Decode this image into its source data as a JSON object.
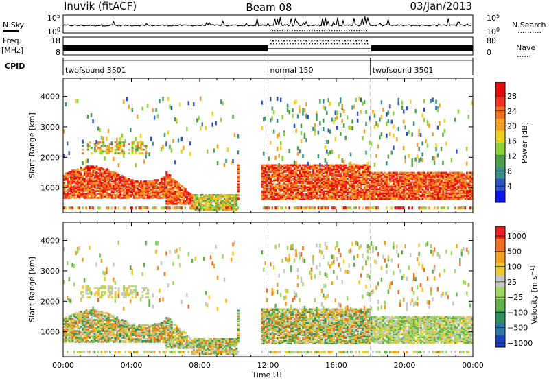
{
  "header": {
    "station": "Inuvik (fitACF)",
    "beam": "Beam 08",
    "date": "03/Jan/2013"
  },
  "top_panels": {
    "nsky_label": "N.Sky",
    "nsky_ticks": [
      "10^5",
      "10^0"
    ],
    "nsearch_label": "N.Search",
    "nsearch_ticks": [
      "10^5",
      "10^0"
    ],
    "freq_label": "Freq.",
    "freq_unit": "[MHz]",
    "freq_ticks": [
      "18",
      "8"
    ],
    "nave_label": "Nave",
    "nave_ticks": [
      "80",
      "0"
    ],
    "cpid_label": "CPID",
    "cpid_segments": [
      {
        "label": "twofsound 3501",
        "start_h": 0,
        "end_h": 12
      },
      {
        "label": "normal 150",
        "start_h": 12,
        "end_h": 18
      },
      {
        "label": "twofsound 3501",
        "start_h": 18,
        "end_h": 24
      }
    ]
  },
  "chart_data": [
    {
      "type": "heatmap",
      "title": "",
      "xlabel": "Time UT",
      "ylabel": "Slant Range [km]",
      "xlim_hours": [
        0,
        24
      ],
      "x_ticks": [
        "00:00",
        "04:00",
        "08:00",
        "12:00",
        "16:00",
        "20:00",
        "00:00"
      ],
      "ylim_km": [
        180,
        4600
      ],
      "y_ticks": [
        1000,
        2000,
        3000,
        4000
      ],
      "colorbar": {
        "label": "Power [dB]",
        "ticks": [
          "4",
          "8",
          "12",
          "16",
          "20",
          "24",
          "28"
        ],
        "colors": [
          "#0a14f0",
          "#2b55c4",
          "#3a8f8a",
          "#4da04a",
          "#8ed23a",
          "#f0d020",
          "#f5a020",
          "#f07020",
          "#f03020",
          "#e80a0a"
        ]
      },
      "features": [
        {
          "name": "main band",
          "start_h": 0,
          "end_h": 24,
          "range_km": [
            600,
            1550
          ],
          "value": "22–30 dB"
        },
        {
          "name": "upper band",
          "start_h": 1,
          "end_h": 5,
          "range_km": [
            2100,
            2500
          ],
          "value": "12–20 dB"
        },
        {
          "name": "data gap",
          "start_h": 10,
          "end_h": 11.5,
          "range_km": [
            500,
            4600
          ],
          "value": "none"
        }
      ]
    },
    {
      "type": "heatmap",
      "title": "",
      "xlabel": "Time UT",
      "ylabel": "Slant Range [km]",
      "xlim_hours": [
        0,
        24
      ],
      "x_ticks": [
        "00:00",
        "04:00",
        "08:00",
        "12:00",
        "16:00",
        "20:00",
        "00:00"
      ],
      "ylim_km": [
        180,
        4600
      ],
      "y_ticks": [
        1000,
        2000,
        3000,
        4000
      ],
      "colorbar": {
        "label": "Velocity [m s^-1]",
        "ticks": [
          "1000",
          "500",
          "100",
          "25",
          "-25",
          "-100",
          "-500",
          "-1000"
        ],
        "colors": [
          "#1b3fbf",
          "#2e78a8",
          "#2f8f5a",
          "#5fb04a",
          "#a0d860",
          "#c8c8c8",
          "#f0c830",
          "#f0a020",
          "#f07020",
          "#e82020"
        ]
      },
      "features": [
        {
          "name": "main band",
          "start_h": 0,
          "end_h": 24,
          "range_km": [
            600,
            1700
          ],
          "value": "-500 to +500 m/s"
        },
        {
          "name": "upper band",
          "start_h": 1,
          "end_h": 5,
          "range_km": [
            2100,
            2500
          ],
          "value": "-25 to +25 m/s"
        }
      ]
    }
  ]
}
